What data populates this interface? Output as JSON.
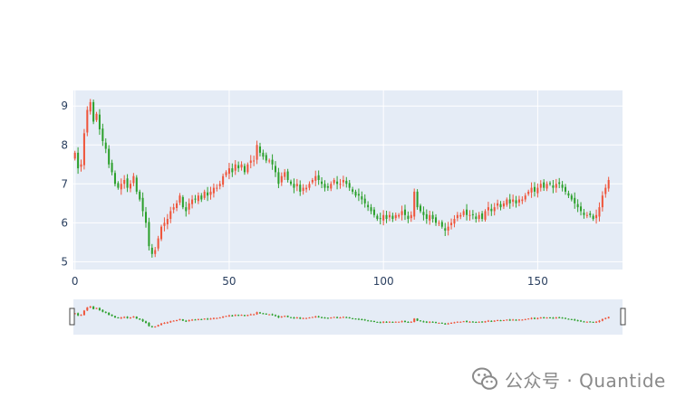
{
  "chart_data": {
    "type": "candlestick",
    "title": "",
    "xlabel": "",
    "ylabel": "",
    "xlim": [
      -0.5,
      177.5
    ],
    "ylim": [
      4.8,
      9.4
    ],
    "x_ticks": [
      "0",
      "50",
      "100",
      "150"
    ],
    "y_ticks": [
      "5",
      "6",
      "7",
      "8",
      "9"
    ],
    "grid": true,
    "rangeslider": true,
    "increasing_color": "#ef553b",
    "decreasing_color": "#2ca02c",
    "closes": [
      7.8,
      7.4,
      7.5,
      8.3,
      8.9,
      9.1,
      8.6,
      8.8,
      8.4,
      8.1,
      7.9,
      7.5,
      7.3,
      7.0,
      6.9,
      7.0,
      7.1,
      6.9,
      7.0,
      7.2,
      6.8,
      6.6,
      6.3,
      6.0,
      5.4,
      5.2,
      5.3,
      5.6,
      5.9,
      6.0,
      6.1,
      6.3,
      6.4,
      6.5,
      6.7,
      6.4,
      6.3,
      6.5,
      6.6,
      6.6,
      6.7,
      6.6,
      6.8,
      6.7,
      6.8,
      6.9,
      6.9,
      7.0,
      7.2,
      7.3,
      7.4,
      7.3,
      7.5,
      7.4,
      7.5,
      7.3,
      7.5,
      7.6,
      7.6,
      8.0,
      7.8,
      7.7,
      7.6,
      7.6,
      7.5,
      7.3,
      7.0,
      7.2,
      7.3,
      7.1,
      7.0,
      6.9,
      7.0,
      6.8,
      6.9,
      6.9,
      7.0,
      7.1,
      7.2,
      7.1,
      7.0,
      6.9,
      6.9,
      7.0,
      7.1,
      7.0,
      7.0,
      7.1,
      7.0,
      6.9,
      6.8,
      6.7,
      6.7,
      6.6,
      6.5,
      6.4,
      6.3,
      6.2,
      6.1,
      6.1,
      6.2,
      6.1,
      6.2,
      6.1,
      6.2,
      6.2,
      6.3,
      6.2,
      6.1,
      6.2,
      6.8,
      6.4,
      6.3,
      6.2,
      6.1,
      6.2,
      6.1,
      6.0,
      6.0,
      5.9,
      5.8,
      5.9,
      6.0,
      6.1,
      6.2,
      6.2,
      6.3,
      6.2,
      6.2,
      6.2,
      6.1,
      6.2,
      6.1,
      6.3,
      6.4,
      6.3,
      6.4,
      6.5,
      6.4,
      6.5,
      6.6,
      6.5,
      6.6,
      6.5,
      6.6,
      6.6,
      6.7,
      6.8,
      6.9,
      6.8,
      6.9,
      7.0,
      6.9,
      7.0,
      7.0,
      6.9,
      7.0,
      7.0,
      6.9,
      6.8,
      6.7,
      6.6,
      6.5,
      6.4,
      6.3,
      6.2,
      6.2,
      6.2,
      6.1,
      6.2,
      6.4,
      6.7,
      6.9,
      7.1
    ]
  },
  "watermark": {
    "icon": "wechat-logo-icon",
    "text": "公众号 · Quantide"
  }
}
